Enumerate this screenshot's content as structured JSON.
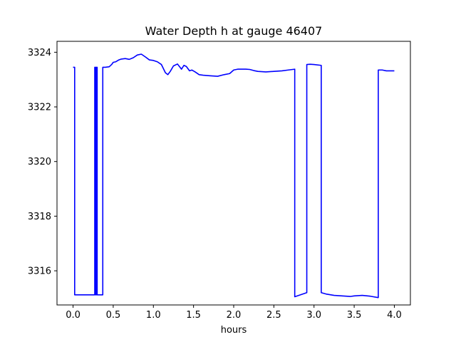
{
  "chart_data": {
    "type": "line",
    "title": "Water Depth h at gauge 46407",
    "xlabel": "hours",
    "ylabel": "",
    "xlim": [
      -0.2,
      4.2
    ],
    "ylim": [
      3314.75,
      3324.4
    ],
    "xticks": [
      0.0,
      0.5,
      1.0,
      1.5,
      2.0,
      2.5,
      3.0,
      3.5,
      4.0
    ],
    "xtick_labels": [
      "0.0",
      "0.5",
      "1.0",
      "1.5",
      "2.0",
      "2.5",
      "3.0",
      "3.5",
      "4.0"
    ],
    "yticks": [
      3316,
      3318,
      3320,
      3322,
      3324
    ],
    "ytick_labels": [
      "3316",
      "3318",
      "3320",
      "3322",
      "3324"
    ],
    "grid": false,
    "series": [
      {
        "color": "#0000ff",
        "x": [
          0.0,
          0.02,
          0.02,
          0.27,
          0.27,
          0.28,
          0.28,
          0.29,
          0.29,
          0.3,
          0.3,
          0.37,
          0.37,
          0.4,
          0.45,
          0.48,
          0.5,
          0.53,
          0.57,
          0.6,
          0.65,
          0.7,
          0.75,
          0.8,
          0.85,
          0.9,
          0.95,
          1.0,
          1.05,
          1.1,
          1.15,
          1.18,
          1.21,
          1.25,
          1.3,
          1.35,
          1.38,
          1.41,
          1.45,
          1.48,
          1.52,
          1.57,
          1.62,
          1.7,
          1.8,
          1.88,
          1.95,
          2.0,
          2.05,
          2.1,
          2.15,
          2.2,
          2.25,
          2.3,
          2.4,
          2.5,
          2.6,
          2.68,
          2.76,
          2.76,
          2.91,
          2.91,
          2.95,
          3.0,
          3.09,
          3.09,
          3.15,
          3.25,
          3.35,
          3.45,
          3.5,
          3.6,
          3.7,
          3.8,
          3.8,
          3.85,
          3.9,
          4.0
        ],
        "y": [
          3323.45,
          3323.45,
          3315.12,
          3315.12,
          3323.45,
          3323.45,
          3315.12,
          3315.12,
          3323.45,
          3323.45,
          3315.12,
          3315.12,
          3323.45,
          3323.45,
          3323.47,
          3323.55,
          3323.63,
          3323.65,
          3323.72,
          3323.75,
          3323.77,
          3323.74,
          3323.8,
          3323.9,
          3323.93,
          3323.83,
          3323.72,
          3323.7,
          3323.65,
          3323.55,
          3323.25,
          3323.18,
          3323.3,
          3323.5,
          3323.57,
          3323.38,
          3323.52,
          3323.48,
          3323.32,
          3323.35,
          3323.28,
          3323.18,
          3323.16,
          3323.14,
          3323.12,
          3323.18,
          3323.22,
          3323.35,
          3323.38,
          3323.38,
          3323.38,
          3323.37,
          3323.33,
          3323.3,
          3323.28,
          3323.3,
          3323.32,
          3323.35,
          3323.38,
          3315.05,
          3315.2,
          3323.55,
          3323.56,
          3323.55,
          3323.52,
          3315.2,
          3315.15,
          3315.1,
          3315.08,
          3315.06,
          3315.08,
          3315.1,
          3315.07,
          3315.02,
          3323.35,
          3323.35,
          3323.32,
          3323.32
        ]
      }
    ]
  }
}
